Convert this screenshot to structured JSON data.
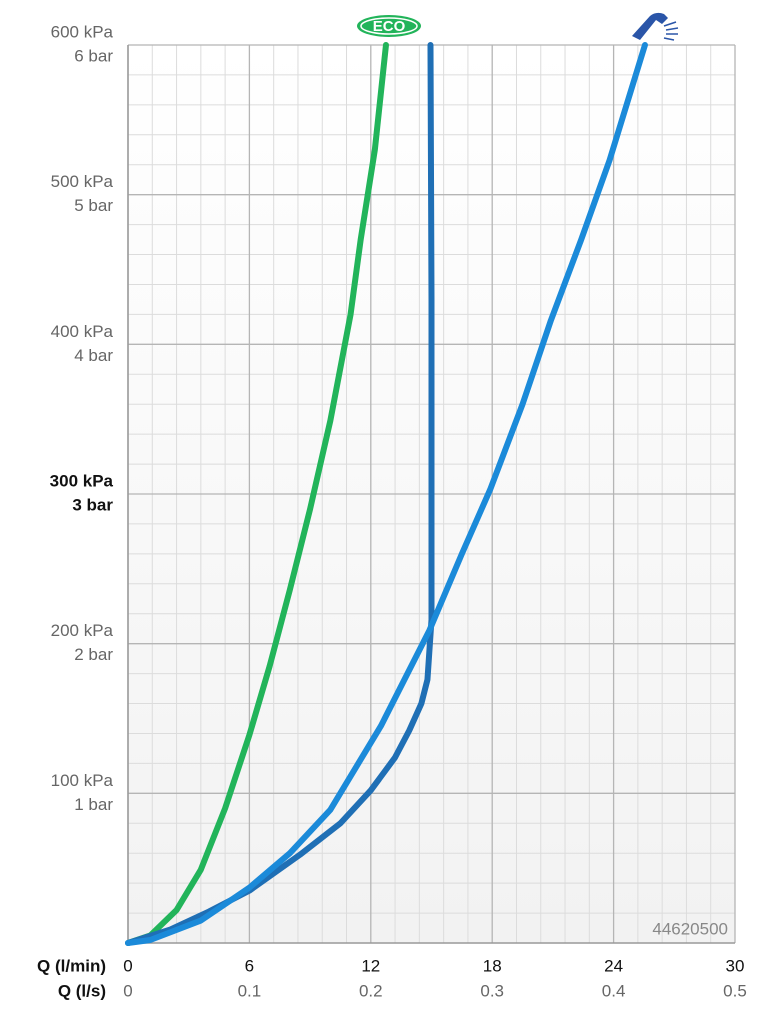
{
  "chart_data": {
    "type": "line",
    "x_label": "Q (l/min)",
    "x2_label": "Q (l/s)",
    "watermark": "44620500",
    "xlim": [
      0,
      30
    ],
    "xticks": [
      0,
      6,
      12,
      18,
      24,
      30
    ],
    "x2lim": [
      0,
      0.5
    ],
    "x2ticks": [
      0,
      0.1,
      0.2,
      0.3,
      0.4,
      0.5
    ],
    "ylim": [
      0,
      600
    ],
    "yticks": [
      {
        "value": 100,
        "label": "100 kPa"
      },
      {
        "value": 200,
        "label": "200 kPa"
      },
      {
        "value": 300,
        "label": "300 kPa"
      },
      {
        "value": 400,
        "label": "400 kPa"
      },
      {
        "value": 500,
        "label": "500 kPa"
      },
      {
        "value": 600,
        "label": "600 kPa"
      }
    ],
    "ytick_sublabels": [
      "1 bar",
      "2 bar",
      "3 bar",
      "4 bar",
      "5 bar",
      "6 bar"
    ],
    "emphasized_ytick": 300,
    "xminor": [
      1.2,
      2.4,
      3.6,
      4.8,
      7.2,
      8.4,
      9.6,
      10.8,
      13.2,
      14.4,
      15.6,
      16.8,
      19.2,
      20.4,
      21.6,
      22.8,
      25.2,
      26.4,
      27.6,
      28.8
    ],
    "yminor": [
      20,
      40,
      60,
      80,
      120,
      140,
      160,
      180,
      220,
      240,
      260,
      280,
      320,
      340,
      360,
      380,
      420,
      440,
      460,
      480,
      520,
      540,
      560,
      580
    ],
    "grid": true,
    "series": [
      {
        "name": "ECO",
        "color": "#22b45a",
        "x": [
          0,
          1.1,
          2.4,
          3.6,
          4.8,
          6,
          7,
          8,
          9,
          10,
          11,
          11.5,
          12.2,
          12.75
        ],
        "values": [
          0,
          5,
          22,
          49,
          90,
          139,
          185,
          236,
          290,
          349,
          420,
          470,
          530,
          600
        ]
      },
      {
        "color": "#1f6fb5",
        "x": [
          0,
          2.1,
          4,
          6,
          8.5,
          10.5,
          12,
          13.2,
          13.9,
          14.5,
          14.8,
          15,
          15,
          15,
          14.95
        ],
        "values": [
          0,
          9,
          21,
          35,
          59,
          80,
          102,
          124,
          142,
          160,
          176,
          216,
          300,
          430,
          600
        ]
      },
      {
        "color": "#1b8ad9",
        "x": [
          0,
          1.1,
          3.6,
          6,
          8,
          10,
          12.5,
          14.9,
          16.5,
          17.9,
          19.5,
          20.9,
          22.4,
          23.8,
          25.55
        ],
        "values": [
          0,
          2,
          15,
          37,
          60,
          89,
          145,
          209,
          260,
          303,
          360,
          416,
          470,
          523,
          600
        ]
      }
    ]
  }
}
